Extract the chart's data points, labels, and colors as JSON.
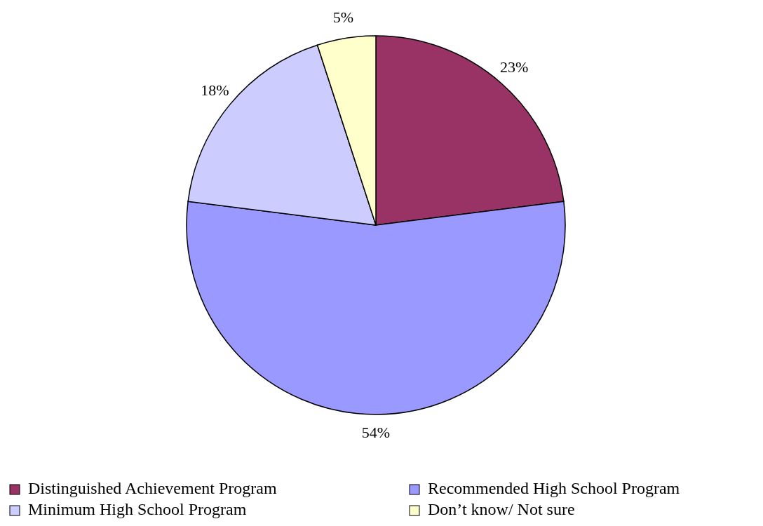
{
  "chart_data": {
    "type": "pie",
    "categories": [
      "Distinguished Achievement Program",
      "Recommended High School Program",
      "Minimum High School Program",
      "Don’t know/ Not sure"
    ],
    "values": [
      23,
      54,
      18,
      5
    ],
    "value_labels": [
      "23%",
      "54%",
      "18%",
      "5%"
    ],
    "colors": [
      "#993366",
      "#9999ff",
      "#ccccff",
      "#ffffcc"
    ],
    "legend": "bottom"
  }
}
